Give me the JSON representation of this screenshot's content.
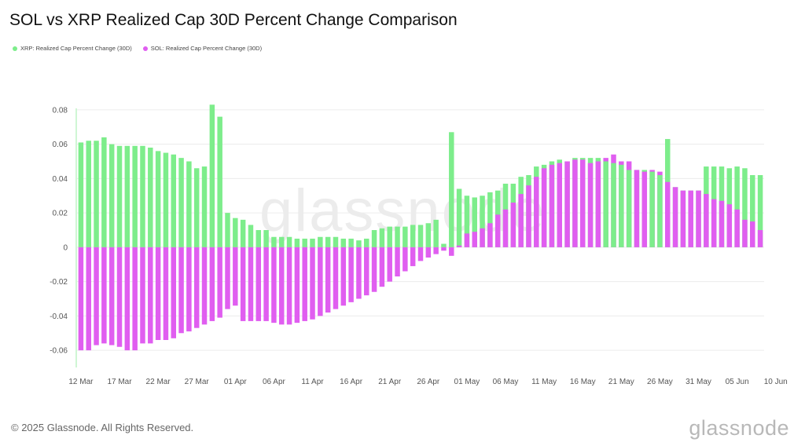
{
  "title": "SOL vs XRP Realized Cap 30D Percent Change Comparison",
  "footer": "© 2025 Glassnode. All Rights Reserved.",
  "brand": "glassnode",
  "watermark": "glassnode",
  "colors": {
    "xrp": "#7ded8b",
    "sol": "#e05ef0",
    "grid": "#ececec",
    "axis_text": "#555555"
  },
  "chart_data": {
    "type": "bar",
    "grid": true,
    "legend_position": "top-left",
    "ylim": [
      -0.07,
      0.09
    ],
    "y_ticks": [
      0.08,
      0.06,
      0.04,
      0.02,
      0,
      -0.02,
      -0.04,
      -0.06
    ],
    "y_tick_labels": [
      "0.08",
      "0.06",
      "0.04",
      "0.02",
      "0",
      "-0.02",
      "-0.04",
      "-0.06"
    ],
    "x_tick_labels": [
      "12 Mar",
      "17 Mar",
      "22 Mar",
      "27 Mar",
      "01 Apr",
      "06 Apr",
      "11 Apr",
      "16 Apr",
      "21 Apr",
      "26 Apr",
      "01 May",
      "06 May",
      "11 May",
      "16 May",
      "21 May",
      "26 May",
      "31 May",
      "05 Jun",
      "10 Jun"
    ],
    "x_start": "2025-03-12",
    "series": [
      {
        "name": "XRP: Realized Cap Percent Change (30D)",
        "values": [
          0.061,
          0.062,
          0.062,
          0.064,
          0.06,
          0.059,
          0.059,
          0.059,
          0.059,
          0.058,
          0.056,
          0.055,
          0.054,
          0.052,
          0.05,
          0.046,
          0.047,
          0.083,
          0.076,
          0.02,
          0.017,
          0.016,
          0.013,
          0.01,
          0.01,
          0.006,
          0.006,
          0.006,
          0.005,
          0.005,
          0.005,
          0.006,
          0.006,
          0.006,
          0.005,
          0.005,
          0.004,
          0.005,
          0.01,
          0.011,
          0.012,
          0.012,
          0.012,
          0.013,
          0.013,
          0.014,
          0.016,
          0.002,
          0.067,
          0.034,
          0.03,
          0.029,
          0.03,
          0.032,
          0.033,
          0.037,
          0.037,
          0.041,
          0.042,
          0.047,
          0.048,
          0.05,
          0.051,
          0.05,
          0.052,
          0.052,
          0.052,
          0.052,
          0.05,
          0.049,
          0.048,
          0.045,
          0.045,
          0.045,
          0.044,
          0.042,
          0.063,
          0.035,
          0.033,
          0.033,
          0.033,
          0.047,
          0.047,
          0.047,
          0.046,
          0.047,
          0.046,
          0.042,
          0.042
        ],
        "color": "#7ded8b"
      },
      {
        "name": "SOL: Realized Cap Percent Change (30D)",
        "values": [
          -0.06,
          -0.06,
          -0.057,
          -0.056,
          -0.057,
          -0.058,
          -0.06,
          -0.06,
          -0.056,
          -0.056,
          -0.054,
          -0.054,
          -0.053,
          -0.05,
          -0.049,
          -0.047,
          -0.045,
          -0.043,
          -0.041,
          -0.036,
          -0.034,
          -0.043,
          -0.043,
          -0.043,
          -0.043,
          -0.044,
          -0.045,
          -0.045,
          -0.044,
          -0.043,
          -0.042,
          -0.04,
          -0.038,
          -0.036,
          -0.034,
          -0.032,
          -0.03,
          -0.028,
          -0.026,
          -0.023,
          -0.02,
          -0.017,
          -0.014,
          -0.011,
          -0.008,
          -0.006,
          -0.004,
          -0.002,
          -0.005,
          0.001,
          0.008,
          0.009,
          0.011,
          0.014,
          0.019,
          0.022,
          0.026,
          0.031,
          0.036,
          0.041,
          0.046,
          0.048,
          0.049,
          0.05,
          0.051,
          0.051,
          0.049,
          0.05,
          0.052,
          0.054,
          0.05,
          0.05,
          0.045,
          0.044,
          0.045,
          0.044,
          0.038,
          0.035,
          0.033,
          0.033,
          0.033,
          0.031,
          0.028,
          0.027,
          0.025,
          0.022,
          0.016,
          0.015,
          0.01
        ],
        "color": "#e05ef0"
      }
    ]
  }
}
